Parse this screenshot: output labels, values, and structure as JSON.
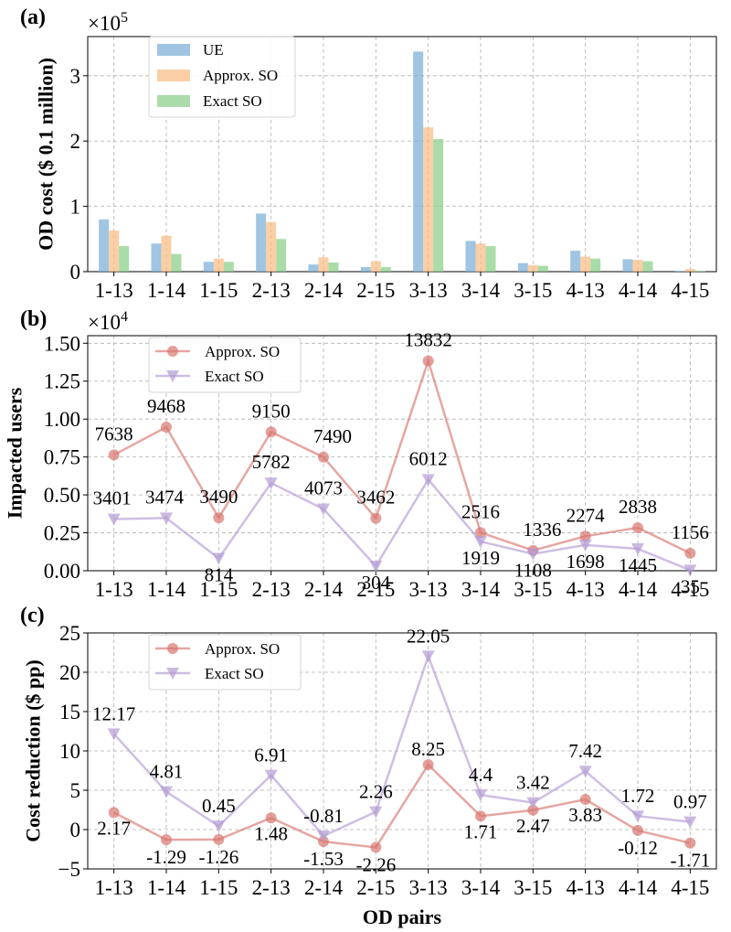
{
  "chart_data": [
    {
      "panel_label": "(a)",
      "type": "bar",
      "categories": [
        "1-13",
        "1-14",
        "1-15",
        "2-13",
        "2-14",
        "2-15",
        "3-13",
        "3-14",
        "3-15",
        "4-13",
        "4-14",
        "4-15"
      ],
      "series": [
        {
          "name": "UE",
          "color": "#7fb2d8",
          "values": [
            80000,
            43000,
            15000,
            89000,
            11000,
            7000,
            337000,
            47000,
            13000,
            32000,
            19000,
            1000
          ]
        },
        {
          "name": "Approx. SO",
          "color": "#f9bf87",
          "values": [
            63000,
            55000,
            20000,
            76000,
            22000,
            16000,
            221000,
            43000,
            10000,
            23000,
            18000,
            4000
          ]
        },
        {
          "name": "Exact SO",
          "color": "#8dd08d",
          "values": [
            39000,
            27000,
            15000,
            50000,
            14000,
            7000,
            203000,
            39000,
            9000,
            20000,
            16000,
            1000
          ]
        }
      ],
      "ylabel": "OD cost ($ 0.1 million)",
      "multiplier": "×10",
      "multiplier_exp": "5",
      "ylim": [
        0,
        360000
      ],
      "yticks": [
        0,
        100000,
        200000,
        300000
      ],
      "ytick_labels": [
        "0",
        "1",
        "2",
        "3"
      ],
      "grid": true,
      "legend": "top-left"
    },
    {
      "panel_label": "(b)",
      "type": "line",
      "categories": [
        "1-13",
        "1-14",
        "1-15",
        "2-13",
        "2-14",
        "2-15",
        "3-13",
        "3-14",
        "3-15",
        "4-13",
        "4-14",
        "4-15"
      ],
      "series": [
        {
          "name": "Approx. SO",
          "color": "#d9766f",
          "marker": "circle",
          "values": [
            7638,
            9468,
            3490,
            9150,
            7490,
            3462,
            13832,
            2516,
            1336,
            2274,
            2838,
            1156
          ]
        },
        {
          "name": "Exact SO",
          "color": "#b39bd4",
          "marker": "triangle-down",
          "values": [
            3401,
            3474,
            814,
            5782,
            4073,
            304,
            6012,
            1919,
            1108,
            1698,
            1445,
            35
          ]
        }
      ],
      "ylabel": "Impacted users",
      "multiplier": "×10",
      "multiplier_exp": "4",
      "ylim": [
        0,
        15500
      ],
      "yticks": [
        0,
        2500,
        5000,
        7500,
        10000,
        12500,
        15000
      ],
      "ytick_labels": [
        "0.00",
        "0.25",
        "0.50",
        "0.75",
        "1.00",
        "1.25",
        "1.50"
      ],
      "grid": true,
      "legend": "top-left"
    },
    {
      "panel_label": "(c)",
      "type": "line",
      "categories": [
        "1-13",
        "1-14",
        "1-15",
        "2-13",
        "2-14",
        "2-15",
        "3-13",
        "3-14",
        "3-15",
        "4-13",
        "4-14",
        "4-15"
      ],
      "series": [
        {
          "name": "Approx. SO",
          "color": "#d9766f",
          "marker": "circle",
          "values": [
            2.17,
            -1.29,
            -1.26,
            1.48,
            -1.53,
            -2.26,
            8.25,
            1.71,
            2.47,
            3.83,
            -0.12,
            -1.71
          ]
        },
        {
          "name": "Exact SO",
          "color": "#b39bd4",
          "marker": "triangle-down",
          "values": [
            12.17,
            4.81,
            0.45,
            6.91,
            -0.81,
            2.26,
            22.05,
            4.4,
            3.42,
            7.42,
            1.72,
            0.97
          ]
        }
      ],
      "ylabel": "Cost reduction ($ pp)",
      "xlabel": "OD pairs",
      "ylim": [
        -5,
        25
      ],
      "yticks": [
        -5,
        0,
        5,
        10,
        15,
        20,
        25
      ],
      "ytick_labels": [
        "−5",
        "0",
        "5",
        "10",
        "15",
        "20",
        "25"
      ],
      "grid": true,
      "legend": "top-left"
    }
  ]
}
